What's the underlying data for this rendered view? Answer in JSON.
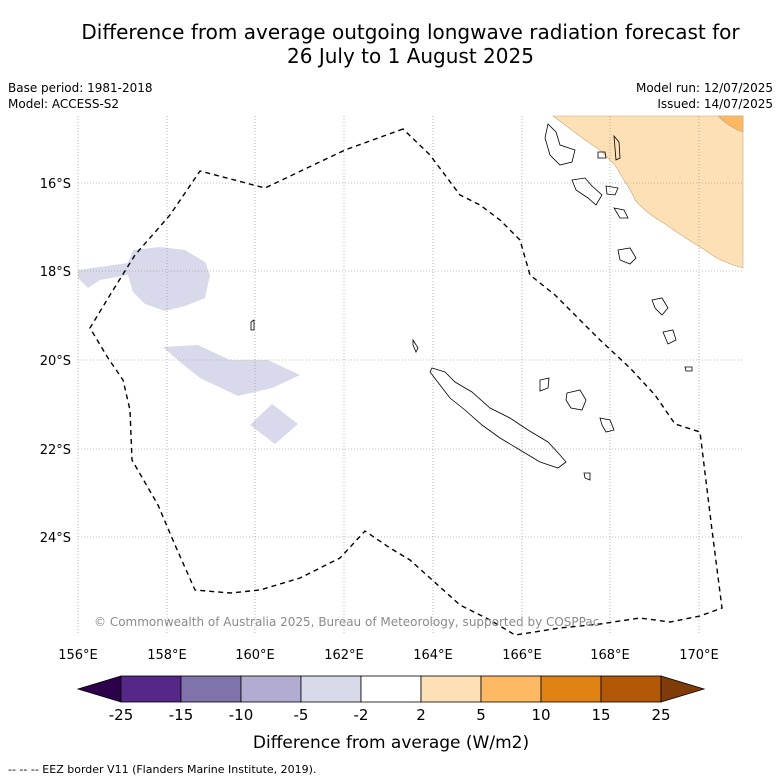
{
  "title": {
    "line1": "Difference from average outgoing longwave radiation forecast for",
    "line2": "26 July to 1 August 2025"
  },
  "info": {
    "base_period": "Base period: 1981-2018",
    "model": "Model: ACCESS-S2",
    "model_run": "Model run: 12/07/2025",
    "issued": "Issued: 14/07/2025"
  },
  "map": {
    "lon_labels": [
      "156°E",
      "158°E",
      "160°E",
      "162°E",
      "164°E",
      "166°E",
      "168°E",
      "170°E"
    ],
    "lat_labels": [
      "16°S",
      "18°S",
      "20°S",
      "22°S",
      "24°S"
    ],
    "copyright": "© Commonwealth of Australia 2025, Bureau of Meteorology, supported by COSPPac"
  },
  "colorbar": {
    "tick_labels": [
      "-25",
      "-15",
      "-10",
      "-5",
      "-2",
      "2",
      "5",
      "10",
      "15",
      "25"
    ],
    "label": "Difference from average (W/m2)",
    "colors": [
      "#2d004b",
      "#542788",
      "#8073ac",
      "#b2abd2",
      "#d8daeb",
      "#ffffff",
      "#fee0b6",
      "#fdb863",
      "#e08214",
      "#b35806",
      "#7f3b08"
    ]
  },
  "legend": {
    "eez": "-- -- -- EEZ border V11 (Flanders Marine Institute, 2019)."
  }
}
